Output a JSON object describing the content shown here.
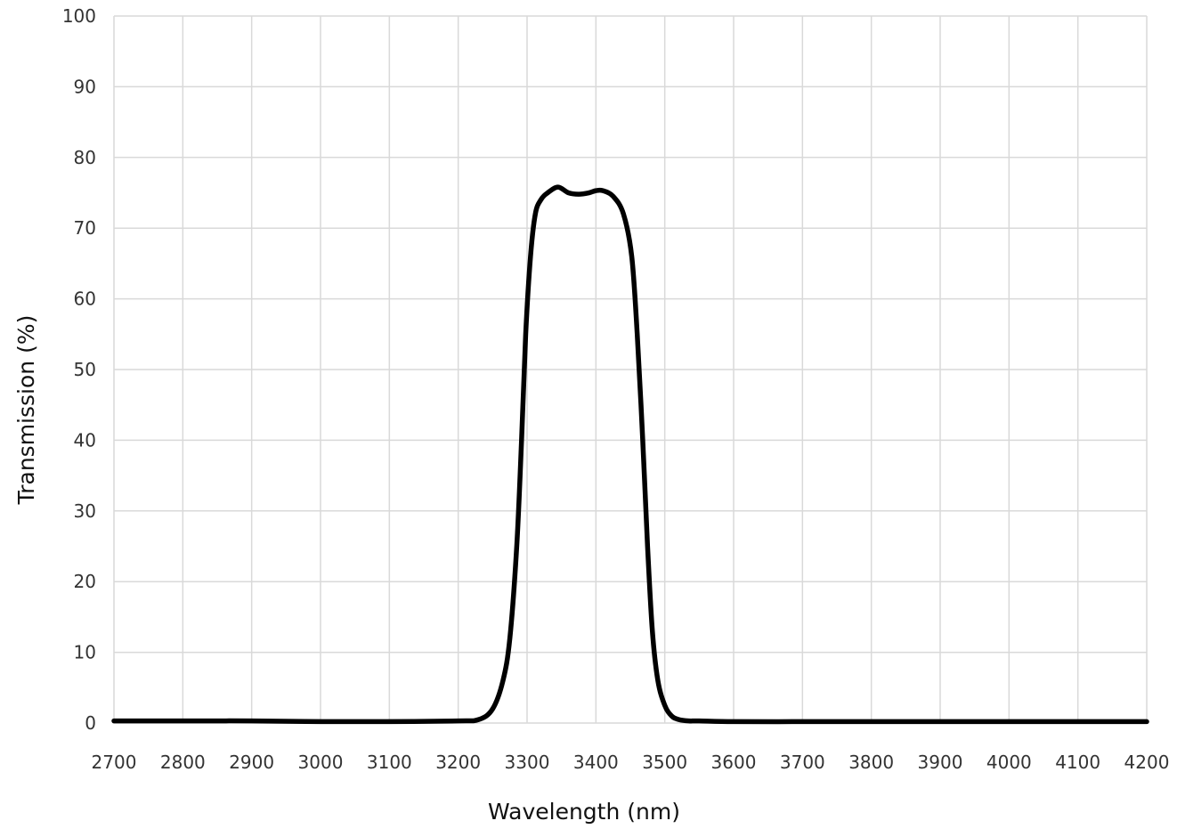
{
  "chart_data": {
    "type": "line",
    "title": "",
    "xlabel": "Wavelength (nm)",
    "ylabel": "Transmission (%)",
    "xlim": [
      2700,
      4200
    ],
    "ylim": [
      0,
      100
    ],
    "grid": true,
    "x_ticks": [
      2700,
      2800,
      2900,
      3000,
      3100,
      3200,
      3300,
      3400,
      3500,
      3600,
      3700,
      3800,
      3900,
      4000,
      4100,
      4200
    ],
    "x_tick_labels": [
      "2700",
      "2800",
      "2900",
      "3000",
      "3100",
      "3200",
      "3300",
      "3400",
      "3500",
      "3600",
      "3700",
      "3800",
      "3900",
      "4000",
      "4100",
      "4200"
    ],
    "y_ticks": [
      0,
      10,
      20,
      30,
      40,
      50,
      60,
      70,
      80,
      90,
      100
    ],
    "y_tick_labels": [
      "0",
      "10",
      "20",
      "30",
      "40",
      "50",
      "60",
      "70",
      "80",
      "90",
      "100"
    ],
    "series": [
      {
        "color": "#000000",
        "x": [
          2700,
          2800,
          2900,
          3000,
          3100,
          3200,
          3230,
          3250,
          3265,
          3275,
          3285,
          3292,
          3298,
          3305,
          3312,
          3320,
          3330,
          3345,
          3360,
          3375,
          3390,
          3400,
          3410,
          3425,
          3440,
          3452,
          3460,
          3468,
          3475,
          3482,
          3490,
          3500,
          3510,
          3520,
          3535,
          3550,
          3600,
          3700,
          3800,
          3900,
          4000,
          4100,
          4200
        ],
        "y": [
          0.3,
          0.3,
          0.3,
          0.2,
          0.2,
          0.3,
          0.5,
          2,
          6,
          12,
          25,
          40,
          55,
          66,
          72,
          74,
          75,
          75.8,
          75,
          74.8,
          75,
          75.3,
          75.3,
          74.5,
          72,
          66,
          55,
          40,
          25,
          13,
          6,
          2.5,
          1,
          0.5,
          0.3,
          0.3,
          0.2,
          0.2,
          0.2,
          0.2,
          0.2,
          0.2,
          0.2
        ]
      }
    ]
  }
}
